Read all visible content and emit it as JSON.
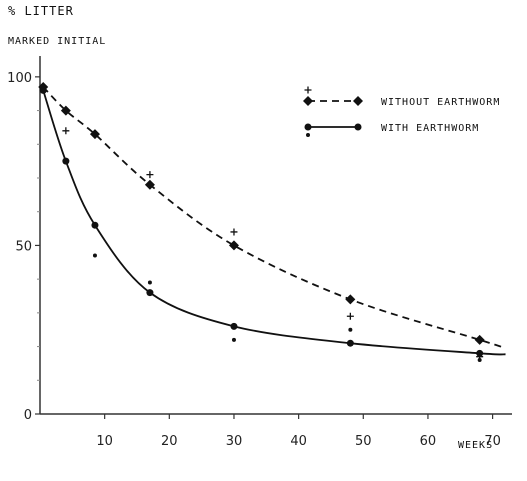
{
  "chart_data": {
    "type": "line",
    "ylabel_line1": "% LITTER",
    "ylabel_line2": "MARKED INITIAL",
    "xlabel": "WEEKS",
    "xlim": [
      0,
      73
    ],
    "ylim": [
      0,
      105
    ],
    "x_ticks": [
      10,
      20,
      30,
      40,
      50,
      60,
      70
    ],
    "y_ticks": [
      0,
      50,
      100
    ],
    "grid": false,
    "legend_position": "top-right",
    "series": [
      {
        "name": "WITHOUT EARTHWORM",
        "style": "dashed",
        "marker": "diamond",
        "color": "#111111",
        "x": [
          0.5,
          4,
          8.5,
          17,
          30,
          48,
          68
        ],
        "y": [
          97,
          90,
          83,
          68,
          50,
          34,
          22
        ],
        "replicates": [
          [
            4,
            84
          ],
          [
            17,
            71
          ],
          [
            30,
            54
          ],
          [
            48,
            29
          ],
          [
            68,
            17
          ]
        ]
      },
      {
        "name": "WITH EARTHWORM",
        "style": "solid",
        "marker": "dot",
        "color": "#111111",
        "x": [
          0.5,
          4,
          8.5,
          17,
          30,
          48,
          68
        ],
        "y": [
          96,
          75,
          56,
          36,
          26,
          21,
          18
        ],
        "replicates": [
          [
            8.5,
            47
          ],
          [
            17,
            39
          ],
          [
            30,
            22
          ],
          [
            48,
            25
          ],
          [
            68,
            16
          ]
        ]
      }
    ]
  }
}
